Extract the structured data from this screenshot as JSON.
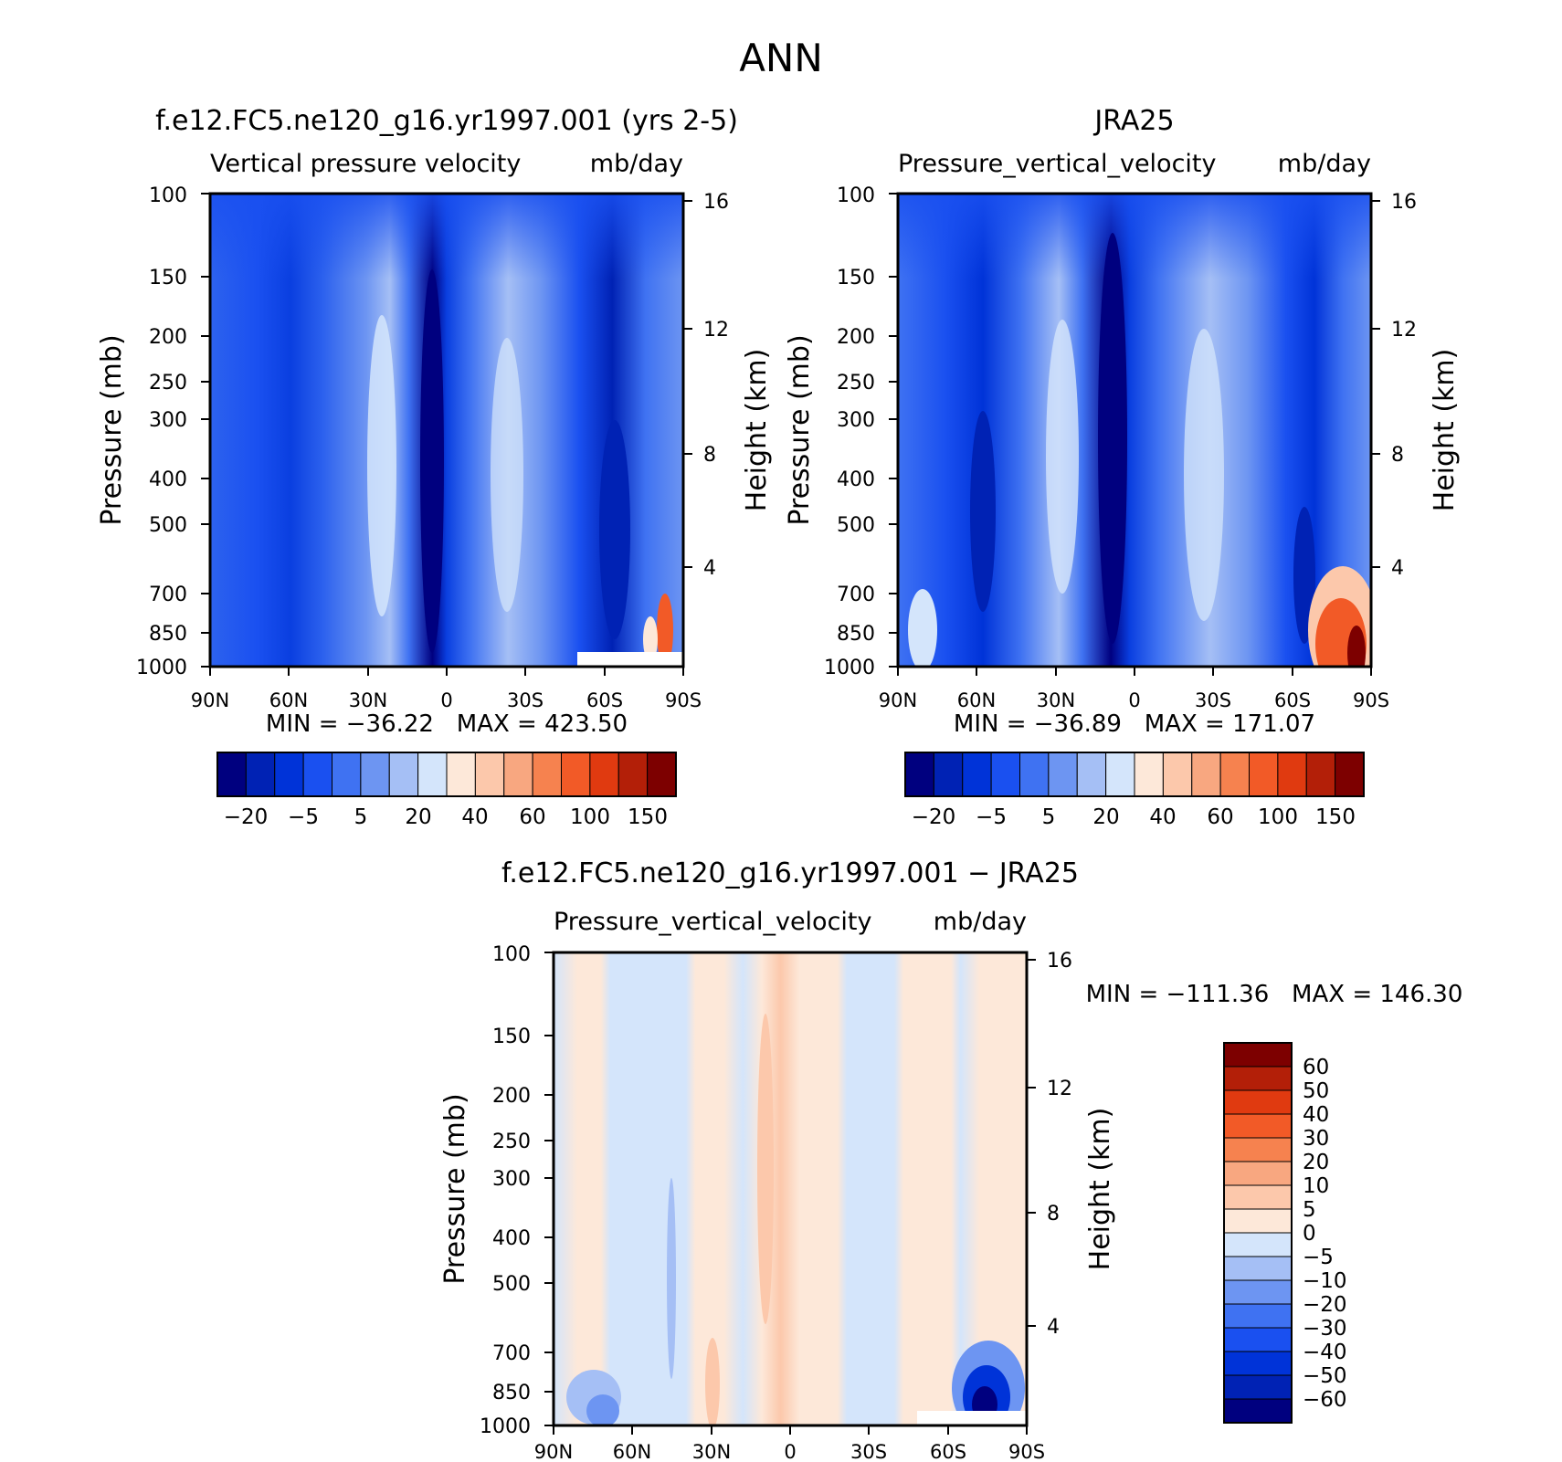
{
  "page_title": "ANN",
  "colors": {
    "diverging_scale": [
      "#00007f",
      "#0022b4",
      "#0033d8",
      "#1a50f0",
      "#3f72f2",
      "#6d95f2",
      "#a5bff5",
      "#d4e5fb",
      "#fde8d9",
      "#fcc8ab",
      "#f8a780",
      "#f6824f",
      "#f25a27",
      "#e03a10",
      "#b31f08",
      "#7d0000"
    ]
  },
  "chart_data": [
    {
      "type": "heatmap",
      "panel": "model",
      "header": "f.e12.FC5.ne120_g16.yr1997.001 (yrs 2-5)",
      "title": "Vertical pressure velocity",
      "units": "mb/day",
      "ylabel": "Pressure (mb)",
      "y2label": "Height (km)",
      "x_ticks": [
        "90N",
        "60N",
        "30N",
        "0",
        "30S",
        "60S",
        "90S"
      ],
      "xlim": [
        90,
        -90
      ],
      "y_ticks": [
        100,
        150,
        200,
        250,
        300,
        400,
        500,
        700,
        850,
        1000
      ],
      "ylim": [
        1000,
        100
      ],
      "y_scale": "log",
      "y2_ticks": [
        16,
        12,
        8,
        4
      ],
      "stats": "MIN = −36.22   MAX = 423.50",
      "min": -36.22,
      "max": 423.5,
      "colorbar_orientation": "horizontal",
      "colorbar_labels": [
        "−20",
        "−5",
        "5",
        "20",
        "40",
        "60",
        "100",
        "150"
      ],
      "colorbar_bins": 16,
      "features": [
        {
          "lat": 90,
          "value_band": 3
        },
        {
          "lat": 60,
          "value_band": 2
        },
        {
          "lat": 25,
          "value_band": 6
        },
        {
          "lat": 5,
          "value_band": 0
        },
        {
          "lat": -25,
          "value_band": 6
        },
        {
          "lat": -60,
          "value_band": 1
        },
        {
          "lat": -80,
          "value_band": 12
        }
      ]
    },
    {
      "type": "heatmap",
      "panel": "obs",
      "header": "JRA25",
      "title": "Pressure_vertical_velocity",
      "units": "mb/day",
      "ylabel": "Pressure (mb)",
      "y2label": "Height (km)",
      "x_ticks": [
        "90N",
        "60N",
        "30N",
        "0",
        "30S",
        "60S",
        "90S"
      ],
      "xlim": [
        90,
        -90
      ],
      "y_ticks": [
        100,
        150,
        200,
        250,
        300,
        400,
        500,
        700,
        850,
        1000
      ],
      "ylim": [
        1000,
        100
      ],
      "y_scale": "log",
      "y2_ticks": [
        16,
        12,
        8,
        4
      ],
      "stats": "MIN = −36.89   MAX = 171.07",
      "min": -36.89,
      "max": 171.07,
      "colorbar_orientation": "horizontal",
      "colorbar_labels": [
        "−20",
        "−5",
        "5",
        "20",
        "40",
        "60",
        "100",
        "150"
      ],
      "colorbar_bins": 16,
      "features": [
        {
          "lat": 90,
          "value_band": 3
        },
        {
          "lat": 60,
          "value_band": 2
        },
        {
          "lat": 28,
          "value_band": 6
        },
        {
          "lat": 8,
          "value_band": 0
        },
        {
          "lat": -28,
          "value_band": 6
        },
        {
          "lat": -65,
          "value_band": 2
        },
        {
          "lat": -82,
          "value_band": 13
        }
      ]
    },
    {
      "type": "heatmap",
      "panel": "difference",
      "header": "f.e12.FC5.ne120_g16.yr1997.001 − JRA25",
      "title": "Pressure_vertical_velocity",
      "units": "mb/day",
      "ylabel": "Pressure (mb)",
      "y2label": "Height (km)",
      "x_ticks": [
        "90N",
        "60N",
        "30N",
        "0",
        "30S",
        "60S",
        "90S"
      ],
      "xlim": [
        90,
        -90
      ],
      "y_ticks": [
        100,
        150,
        200,
        250,
        300,
        400,
        500,
        700,
        850,
        1000
      ],
      "ylim": [
        1000,
        100
      ],
      "y_scale": "log",
      "y2_ticks": [
        16,
        12,
        8,
        4
      ],
      "stats": "MIN = −111.36   MAX = 146.30",
      "min": -111.36,
      "max": 146.3,
      "colorbar_orientation": "vertical",
      "colorbar_labels": [
        "60",
        "50",
        "40",
        "30",
        "20",
        "10",
        "5",
        "0",
        "−5",
        "−10",
        "−20",
        "−30",
        "−40",
        "−50",
        "−60"
      ],
      "colorbar_bins": 16
    }
  ]
}
